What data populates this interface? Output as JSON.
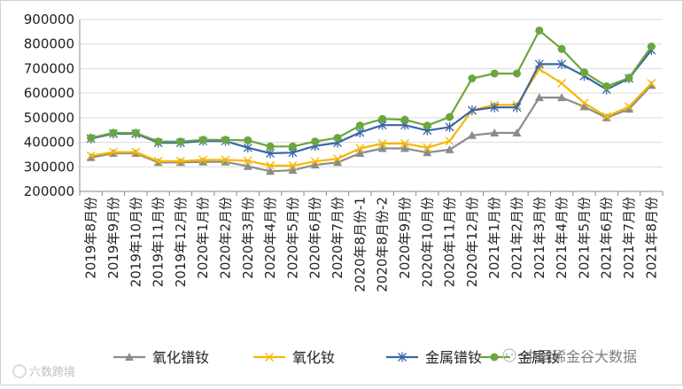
{
  "chart_data": {
    "type": "line",
    "title": "",
    "xlabel": "",
    "ylabel": "",
    "ylim": [
      200000,
      900000
    ],
    "yticks": [
      200000,
      300000,
      400000,
      500000,
      600000,
      700000,
      800000,
      900000
    ],
    "ytick_labels": [
      "200000",
      "300000",
      "400000",
      "500000",
      "600000",
      "700000",
      "800000",
      "900000"
    ],
    "grid": true,
    "legend_position": "bottom",
    "categories": [
      "2019年8月份",
      "2019年9月份",
      "2019年10月份",
      "2019年11月份",
      "2019年12月份",
      "2020年1月份",
      "2020年2月份",
      "2020年3月份",
      "2020年4月份",
      "2020年5月份",
      "2020年6月份",
      "2020年7月份",
      "2020年8月份-1",
      "2020年8月份-2",
      "2020年9月份",
      "2020年10月份",
      "2020年11月份",
      "2020年12月份",
      "2021年1月份",
      "2021年2月份",
      "2021年3月份",
      "2021年4月份",
      "2021年5月份",
      "2021年6月份",
      "2021年7月份",
      "2021年8月份"
    ],
    "series": [
      {
        "name": "氧化镨钕",
        "color": "#8c8c8c",
        "marker": "triangle",
        "values": [
          338000,
          355000,
          355000,
          318000,
          318000,
          320000,
          320000,
          302000,
          282000,
          286000,
          308000,
          318000,
          355000,
          375000,
          375000,
          358000,
          370000,
          428000,
          438000,
          438000,
          582000,
          582000,
          545000,
          500000,
          535000,
          632000
        ]
      },
      {
        "name": "氧化钕",
        "color": "#f5b800",
        "marker": "x",
        "values": [
          345000,
          360000,
          360000,
          323000,
          323000,
          328000,
          328000,
          325000,
          305000,
          305000,
          322000,
          333000,
          375000,
          395000,
          395000,
          378000,
          405000,
          530000,
          552000,
          552000,
          698000,
          640000,
          560000,
          505000,
          545000,
          640000
        ]
      },
      {
        "name": "金属镨钕",
        "color": "#3a66a8",
        "marker": "star",
        "values": [
          415000,
          435000,
          435000,
          398000,
          398000,
          405000,
          405000,
          378000,
          355000,
          358000,
          385000,
          398000,
          440000,
          470000,
          470000,
          448000,
          462000,
          530000,
          542000,
          542000,
          718000,
          718000,
          670000,
          615000,
          660000,
          775000
        ]
      },
      {
        "name": "金属钕",
        "color": "#6aa63e",
        "marker": "circle",
        "values": [
          418000,
          438000,
          438000,
          403000,
          403000,
          410000,
          410000,
          408000,
          383000,
          383000,
          403000,
          418000,
          468000,
          495000,
          492000,
          468000,
          503000,
          660000,
          680000,
          680000,
          855000,
          780000,
          685000,
          628000,
          662000,
          790000
        ]
      }
    ]
  },
  "watermarks": {
    "bottom_left": "六数跨境",
    "bottom_right": "中国稀金谷大数据"
  }
}
